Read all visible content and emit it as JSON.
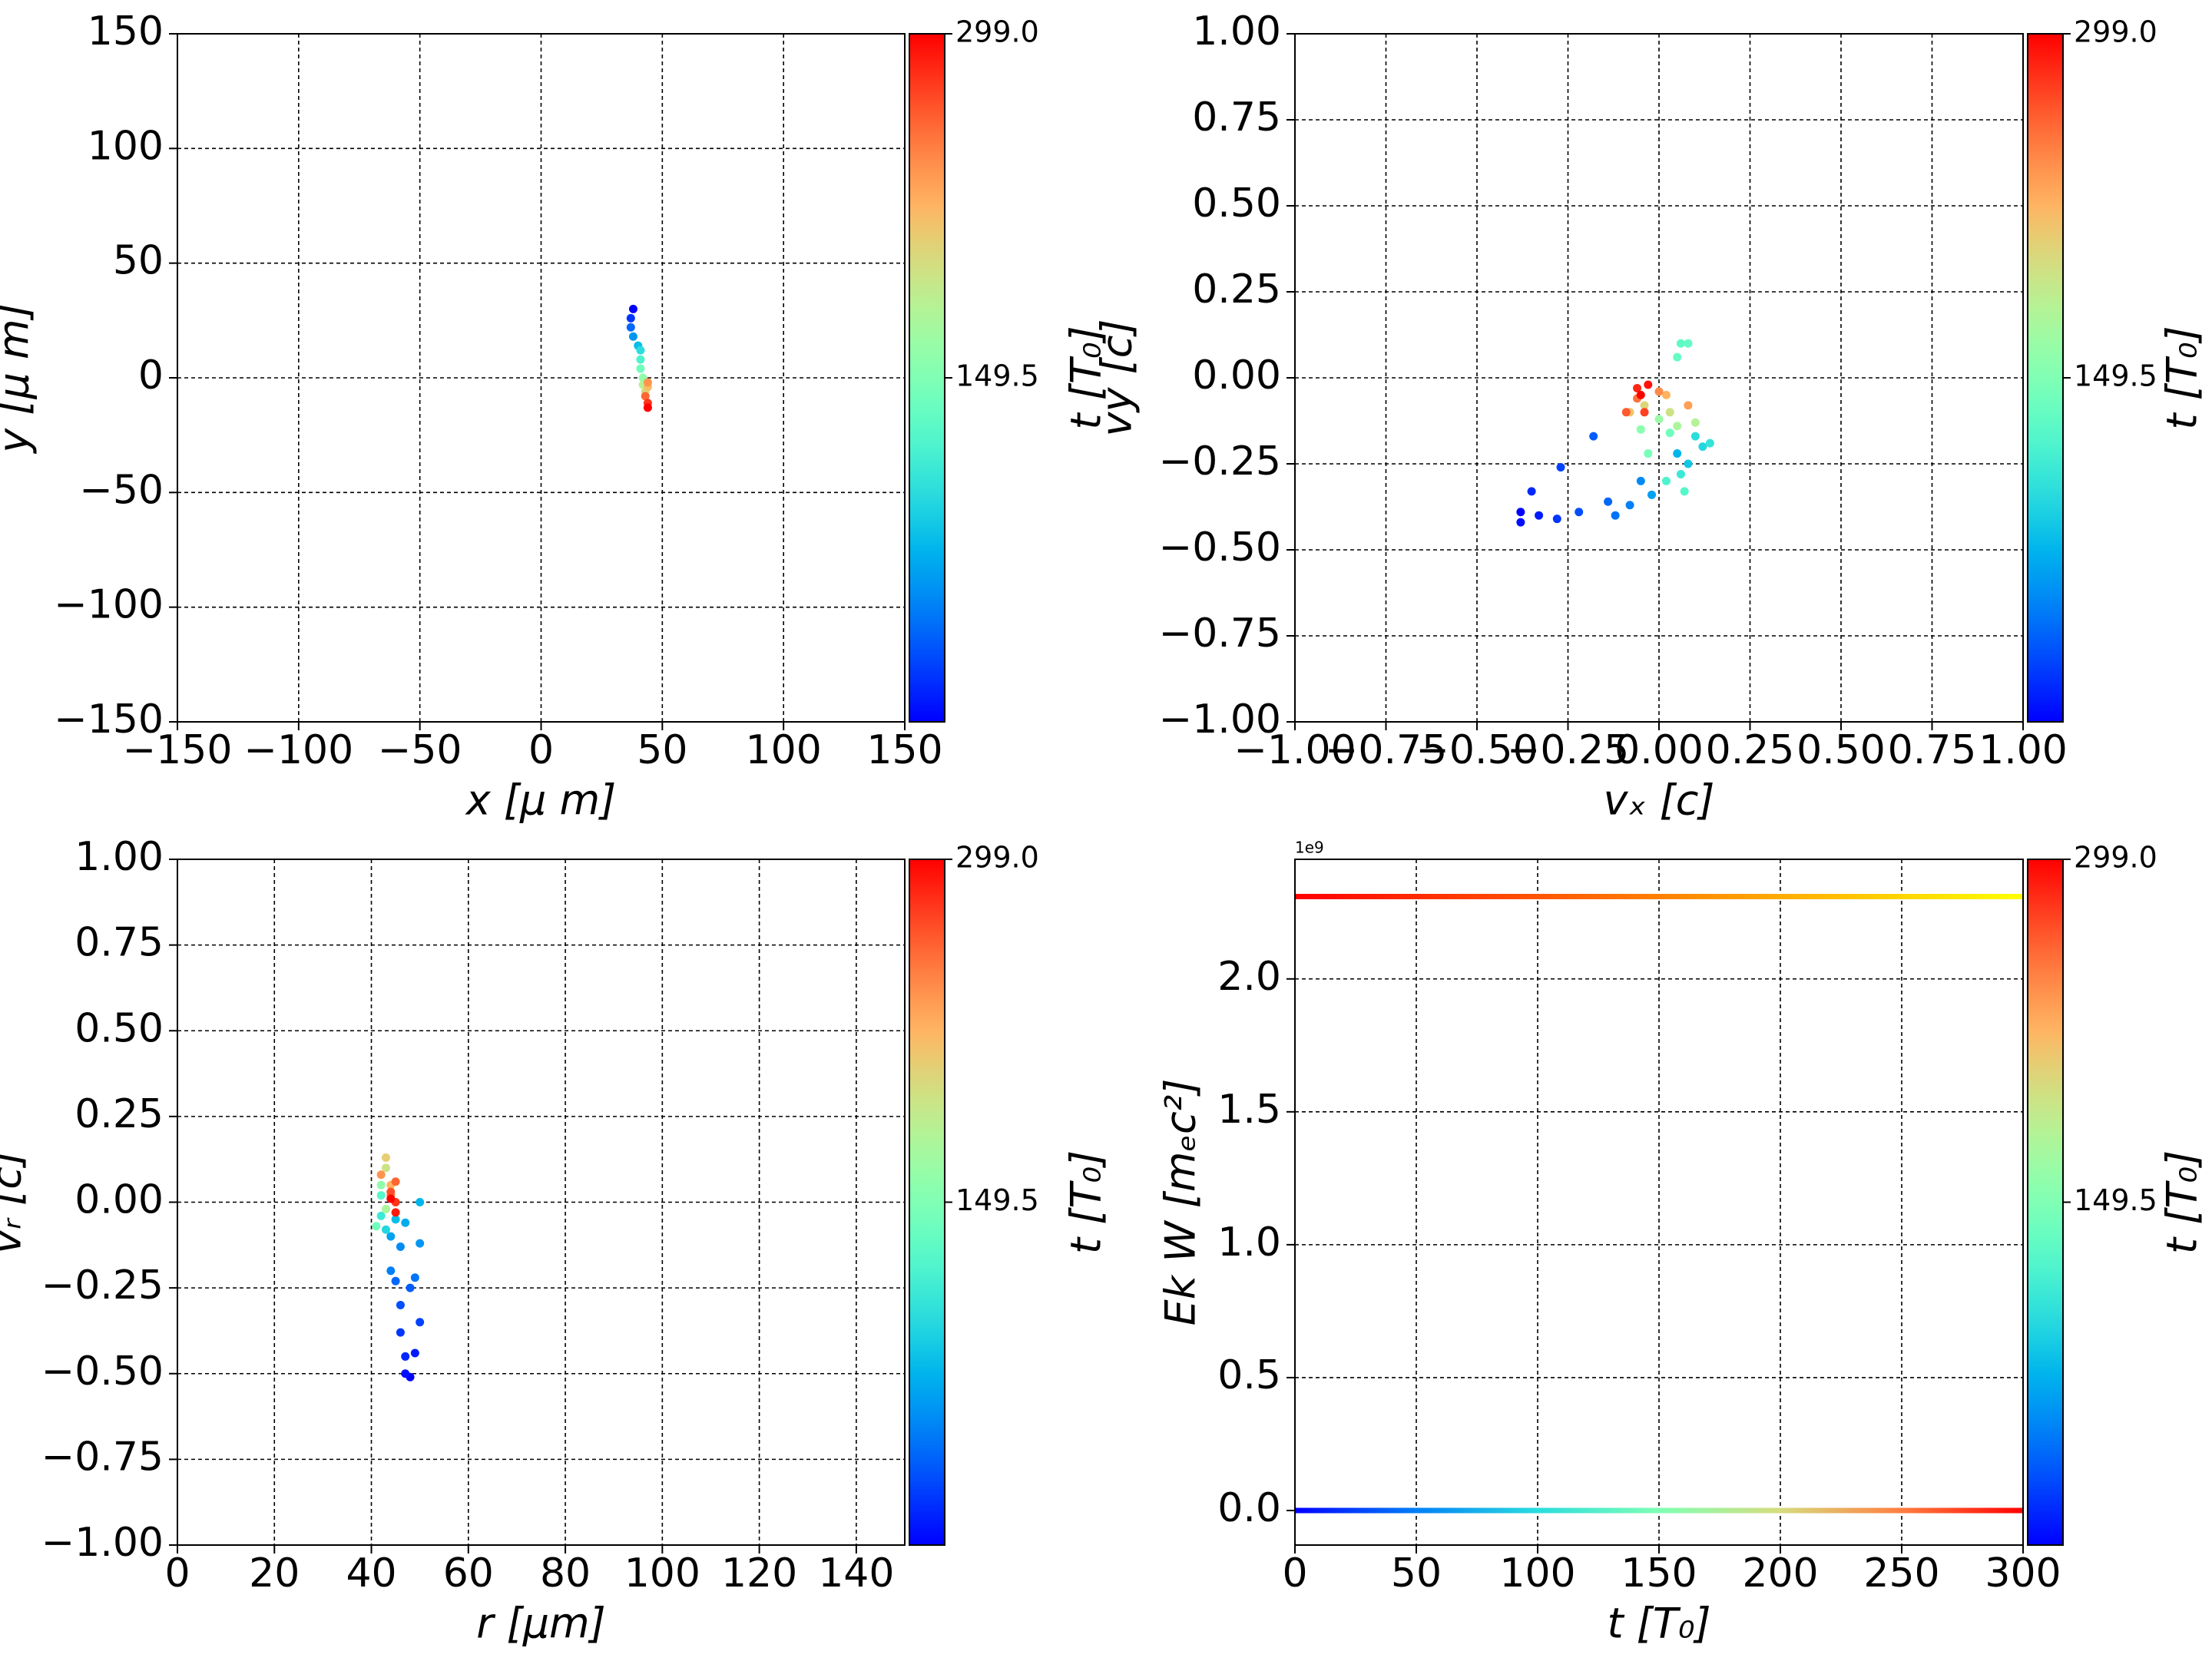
{
  "chart_data": [
    {
      "type": "scatter",
      "xlabel": "x  [μ m]",
      "ylabel": "y  [μ m]",
      "x": [
        38,
        37,
        37,
        38,
        40,
        41,
        41,
        41,
        42,
        42,
        43,
        44,
        44,
        43,
        44,
        44
      ],
      "y": [
        30,
        26,
        22,
        18,
        14,
        12,
        8,
        4,
        0,
        -3,
        -6,
        -4,
        -2,
        -8,
        -11,
        -13
      ],
      "t": [
        0,
        20,
        40,
        60,
        80,
        100,
        120,
        140,
        160,
        180,
        200,
        220,
        240,
        260,
        280,
        299
      ],
      "xlim": [
        -150,
        150
      ],
      "xticks": [
        {
          "value": -150,
          "label": "−150"
        },
        {
          "value": -100,
          "label": "−100"
        },
        {
          "value": -50,
          "label": "−50"
        },
        0,
        50,
        100,
        150
      ],
      "ylim": [
        -150,
        150
      ],
      "yticks": [
        {
          "value": -150,
          "label": "−150"
        },
        {
          "value": -100,
          "label": "−100"
        },
        {
          "value": -50,
          "label": "−50"
        },
        0,
        50,
        100,
        150
      ],
      "grid": true,
      "colorbar": {
        "label": "t [T₀]",
        "cmap": "rainbow",
        "lim": [
          0,
          299
        ],
        "ticks": [
          149.5,
          {
            "value": 299,
            "label": "299.0"
          }
        ]
      }
    },
    {
      "type": "scatter",
      "xlabel": "vₓ [c]",
      "ylabel": "vy [c]",
      "x": [
        -0.38,
        -0.38,
        -0.33,
        -0.35,
        -0.28,
        -0.27,
        -0.22,
        -0.18,
        -0.14,
        -0.12,
        -0.08,
        -0.05,
        -0.02,
        0.05,
        0.08,
        0.12,
        0.1,
        0.14,
        0.06,
        0.02,
        0.07,
        0.06,
        0.08,
        0.05,
        0.03,
        -0.03,
        -0.05,
        0.0,
        0.05,
        0.1,
        0.03,
        -0.04,
        -0.08,
        0.02,
        0.08,
        0.0,
        -0.06,
        -0.09,
        -0.04,
        -0.06,
        -0.03,
        -0.05
      ],
      "y": [
        -0.39,
        -0.42,
        -0.4,
        -0.33,
        -0.41,
        -0.26,
        -0.39,
        -0.17,
        -0.36,
        -0.4,
        -0.37,
        -0.3,
        -0.34,
        -0.22,
        -0.25,
        -0.2,
        -0.17,
        -0.19,
        -0.28,
        -0.3,
        -0.33,
        0.1,
        0.1,
        0.06,
        -0.16,
        -0.22,
        -0.15,
        -0.12,
        -0.14,
        -0.13,
        -0.1,
        -0.08,
        -0.1,
        -0.05,
        -0.08,
        -0.04,
        -0.06,
        -0.1,
        -0.1,
        -0.03,
        -0.02,
        -0.05
      ],
      "t": [
        0,
        5,
        10,
        15,
        20,
        25,
        30,
        35,
        40,
        45,
        50,
        55,
        65,
        75,
        85,
        95,
        100,
        105,
        110,
        120,
        125,
        130,
        132,
        134,
        140,
        145,
        155,
        165,
        175,
        180,
        195,
        205,
        215,
        225,
        235,
        245,
        255,
        265,
        275,
        285,
        292,
        299
      ],
      "xlim": [
        -1,
        1
      ],
      "xticks": [
        {
          "value": -1,
          "label": "−1.00"
        },
        {
          "value": -0.75,
          "label": "−0.75"
        },
        {
          "value": -0.5,
          "label": "−0.50"
        },
        {
          "value": -0.25,
          "label": "−0.25"
        },
        {
          "value": 0,
          "label": "0.00"
        },
        0.25,
        {
          "value": 0.5,
          "label": "0.50"
        },
        0.75,
        {
          "value": 1,
          "label": "1.00"
        }
      ],
      "ylim": [
        -1,
        1
      ],
      "yticks": [
        {
          "value": -1,
          "label": "−1.00"
        },
        {
          "value": -0.75,
          "label": "−0.75"
        },
        {
          "value": -0.5,
          "label": "−0.50"
        },
        {
          "value": -0.25,
          "label": "−0.25"
        },
        {
          "value": 0,
          "label": "0.00"
        },
        0.25,
        {
          "value": 0.5,
          "label": "0.50"
        },
        0.75,
        {
          "value": 1,
          "label": "1.00"
        }
      ],
      "grid": true,
      "colorbar": {
        "label": "t [T₀]",
        "cmap": "rainbow",
        "lim": [
          0,
          299
        ],
        "ticks": [
          149.5,
          {
            "value": 299,
            "label": "299.0"
          }
        ]
      }
    },
    {
      "type": "scatter",
      "xlabel": "r [μm]",
      "ylabel": "vᵣ [c]",
      "x": [
        48,
        47,
        49,
        47,
        46,
        50,
        46,
        48,
        45,
        49,
        44,
        46,
        50,
        44,
        47,
        50,
        45,
        43,
        42,
        42,
        41,
        42,
        43,
        43,
        43,
        44,
        42,
        44,
        45,
        44,
        45,
        45,
        44
      ],
      "y": [
        -0.51,
        -0.5,
        -0.44,
        -0.45,
        -0.38,
        -0.35,
        -0.3,
        -0.25,
        -0.23,
        -0.22,
        -0.2,
        -0.13,
        -0.12,
        -0.1,
        -0.06,
        0,
        -0.05,
        -0.08,
        -0.04,
        0.02,
        -0.07,
        0.05,
        -0.02,
        0.1,
        0.13,
        0.05,
        0.08,
        0.02,
        0.06,
        0.03,
        0,
        -0.03,
        0.01
      ],
      "t": [
        0,
        5,
        10,
        15,
        20,
        25,
        30,
        35,
        40,
        45,
        50,
        55,
        60,
        65,
        70,
        75,
        80,
        95,
        110,
        125,
        140,
        160,
        175,
        195,
        210,
        225,
        240,
        250,
        260,
        270,
        280,
        290,
        299
      ],
      "xlim": [
        0,
        150
      ],
      "xticks": [
        0,
        20,
        40,
        60,
        80,
        100,
        120,
        140
      ],
      "ylim": [
        -1,
        1
      ],
      "yticks": [
        {
          "value": -1,
          "label": "−1.00"
        },
        {
          "value": -0.75,
          "label": "−0.75"
        },
        {
          "value": -0.5,
          "label": "−0.50"
        },
        {
          "value": -0.25,
          "label": "−0.25"
        },
        {
          "value": 0,
          "label": "0.00"
        },
        0.25,
        {
          "value": 0.5,
          "label": "0.50"
        },
        0.75,
        {
          "value": 1,
          "label": "1.00"
        }
      ],
      "grid": true,
      "colorbar": {
        "label": "t [T₀]",
        "cmap": "rainbow",
        "lim": [
          0,
          299
        ],
        "ticks": [
          149.5,
          {
            "value": 299,
            "label": "299.0"
          }
        ]
      }
    },
    {
      "type": "line",
      "xlabel": "t [T₀]",
      "ylabel": "Ek W [mₑc²]",
      "offset_label": "1e9",
      "x": [
        0,
        50,
        100,
        150,
        200,
        250,
        300
      ],
      "series": [
        {
          "cmap": "autumn",
          "values": [
            2.31,
            2.31,
            2.31,
            2.31,
            2.31,
            2.31,
            2.31
          ]
        },
        {
          "cmap": "rainbow",
          "values": [
            0,
            0,
            0,
            0,
            0,
            0,
            0
          ]
        }
      ],
      "xlim": [
        0,
        300
      ],
      "xticks": [
        0,
        50,
        100,
        150,
        200,
        250,
        300
      ],
      "ylim": [
        -0.13,
        2.45
      ],
      "yticks": [
        {
          "value": 0,
          "label": "0.0"
        },
        0.5,
        {
          "value": 1,
          "label": "1.0"
        },
        1.5,
        {
          "value": 2,
          "label": "2.0"
        }
      ],
      "grid": true,
      "colorbar": {
        "label": "t [T₀]",
        "cmap": "rainbow",
        "lim": [
          0,
          299
        ],
        "ticks": [
          149.5,
          {
            "value": 299,
            "label": "299.0"
          }
        ]
      }
    }
  ]
}
